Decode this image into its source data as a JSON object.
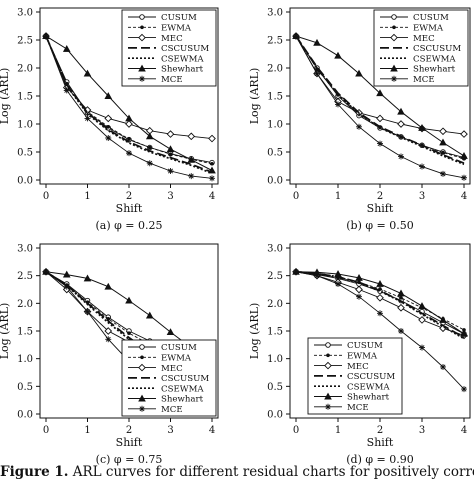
{
  "figure": {
    "caption_label": "Figure 1.",
    "caption_text": "ARL curves for different residual charts for positively correlated processes"
  },
  "legend_labels": [
    "CUSUM",
    "EWMA",
    "MEC",
    "CSCUSUM",
    "CSEWMA",
    "Shewhart",
    "MCE"
  ],
  "chart_data": [
    {
      "type": "line",
      "subcaption": "(a) φ = 0.25",
      "xlabel": "Shift",
      "ylabel": "Log (ARL)",
      "xlim": [
        0,
        4
      ],
      "ylim": [
        0,
        3.0
      ],
      "x_ticks": [
        0,
        1,
        2,
        3,
        4
      ],
      "y_ticks": [
        0.0,
        0.5,
        1.0,
        1.5,
        2.0,
        2.5,
        3.0
      ],
      "legend_position": "top-right",
      "x": [
        0,
        0.5,
        1,
        1.5,
        2,
        2.5,
        3,
        3.5,
        4
      ],
      "series": [
        {
          "name": "CUSUM",
          "values": [
            2.57,
            1.75,
            1.2,
            0.93,
            0.72,
            0.58,
            0.47,
            0.38,
            0.31
          ]
        },
        {
          "name": "EWMA",
          "values": [
            2.57,
            1.72,
            1.22,
            0.95,
            0.73,
            0.58,
            0.46,
            0.37,
            0.29
          ]
        },
        {
          "name": "MEC",
          "values": [
            2.57,
            1.65,
            1.25,
            1.1,
            1.0,
            0.88,
            0.82,
            0.78,
            0.74
          ]
        },
        {
          "name": "CSCUSUM",
          "values": [
            2.57,
            1.7,
            1.2,
            0.9,
            0.68,
            0.52,
            0.4,
            0.28,
            0.14
          ]
        },
        {
          "name": "CSEWMA",
          "values": [
            2.57,
            1.68,
            1.18,
            0.88,
            0.66,
            0.5,
            0.38,
            0.26,
            0.12
          ]
        },
        {
          "name": "Shewhart",
          "values": [
            2.57,
            2.34,
            1.9,
            1.5,
            1.1,
            0.78,
            0.55,
            0.36,
            0.17
          ]
        },
        {
          "name": "MCE",
          "values": [
            2.57,
            1.6,
            1.1,
            0.75,
            0.48,
            0.3,
            0.16,
            0.07,
            0.03
          ]
        }
      ]
    },
    {
      "type": "line",
      "subcaption": "(b) φ = 0.50",
      "xlabel": "Shift",
      "ylabel": "Log (ARL)",
      "xlim": [
        0,
        4
      ],
      "ylim": [
        0,
        3.0
      ],
      "x_ticks": [
        0,
        1,
        2,
        3,
        4
      ],
      "y_ticks": [
        0.0,
        0.5,
        1.0,
        1.5,
        2.0,
        2.5,
        3.0
      ],
      "legend_position": "top-right",
      "x": [
        0,
        0.5,
        1,
        1.5,
        2,
        2.5,
        3,
        3.5,
        4
      ],
      "series": [
        {
          "name": "CUSUM",
          "values": [
            2.57,
            2.0,
            1.5,
            1.15,
            0.93,
            0.77,
            0.62,
            0.5,
            0.4
          ]
        },
        {
          "name": "EWMA",
          "values": [
            2.57,
            1.98,
            1.52,
            1.18,
            0.94,
            0.77,
            0.62,
            0.49,
            0.38
          ]
        },
        {
          "name": "MEC",
          "values": [
            2.57,
            1.9,
            1.4,
            1.2,
            1.1,
            1.0,
            0.92,
            0.87,
            0.82
          ]
        },
        {
          "name": "CSCUSUM",
          "values": [
            2.57,
            2.02,
            1.55,
            1.2,
            0.95,
            0.78,
            0.62,
            0.45,
            0.3
          ]
        },
        {
          "name": "CSEWMA",
          "values": [
            2.57,
            2.0,
            1.53,
            1.18,
            0.93,
            0.76,
            0.6,
            0.43,
            0.28
          ]
        },
        {
          "name": "Shewhart",
          "values": [
            2.57,
            2.45,
            2.22,
            1.9,
            1.55,
            1.22,
            0.93,
            0.67,
            0.43
          ]
        },
        {
          "name": "MCE",
          "values": [
            2.57,
            1.9,
            1.35,
            0.95,
            0.65,
            0.42,
            0.24,
            0.11,
            0.04
          ]
        }
      ]
    },
    {
      "type": "line",
      "subcaption": "(c) φ = 0.75",
      "xlabel": "Shift",
      "ylabel": "Log (ARL)",
      "xlim": [
        0,
        4
      ],
      "ylim": [
        0,
        3.0
      ],
      "x_ticks": [
        0,
        1,
        2,
        3,
        4
      ],
      "y_ticks": [
        0.0,
        0.5,
        1.0,
        1.5,
        2.0,
        2.5,
        3.0
      ],
      "legend_position": "bottom-right",
      "x": [
        0,
        0.5,
        1,
        1.5,
        2,
        2.5,
        3,
        3.5,
        4
      ],
      "series": [
        {
          "name": "CUSUM",
          "values": [
            2.57,
            2.35,
            2.05,
            1.75,
            1.5,
            1.32,
            1.18,
            1.1,
            1.02
          ]
        },
        {
          "name": "EWMA",
          "values": [
            2.57,
            2.33,
            2.02,
            1.72,
            1.46,
            1.26,
            1.1,
            0.98,
            0.88
          ]
        },
        {
          "name": "MEC",
          "values": [
            2.57,
            2.25,
            1.85,
            1.5,
            1.3,
            1.2,
            1.15,
            1.1,
            1.05
          ]
        },
        {
          "name": "CSCUSUM",
          "values": [
            2.57,
            2.33,
            2.0,
            1.68,
            1.38,
            1.12,
            0.92,
            0.75,
            0.6
          ]
        },
        {
          "name": "CSEWMA",
          "values": [
            2.57,
            2.32,
            1.98,
            1.65,
            1.35,
            1.1,
            0.9,
            0.72,
            0.57
          ]
        },
        {
          "name": "Shewhart",
          "values": [
            2.57,
            2.52,
            2.45,
            2.3,
            2.05,
            1.78,
            1.48,
            1.2,
            0.91
          ]
        },
        {
          "name": "MCE",
          "values": [
            2.57,
            2.3,
            1.85,
            1.35,
            0.95,
            0.62,
            0.4,
            0.22,
            0.1
          ]
        }
      ]
    },
    {
      "type": "line",
      "subcaption": "(d) φ = 0.90",
      "xlabel": "Shift",
      "ylabel": "Log (ARL)",
      "xlim": [
        0,
        4
      ],
      "ylim": [
        0,
        3.0
      ],
      "x_ticks": [
        0,
        1,
        2,
        3,
        4
      ],
      "y_ticks": [
        0.0,
        0.5,
        1.0,
        1.5,
        2.0,
        2.5,
        3.0
      ],
      "legend_position": "bottom-left",
      "x": [
        0,
        0.5,
        1,
        1.5,
        2,
        2.5,
        3,
        3.5,
        4
      ],
      "series": [
        {
          "name": "CUSUM",
          "values": [
            2.57,
            2.52,
            2.45,
            2.35,
            2.22,
            2.05,
            1.85,
            1.65,
            1.45
          ]
        },
        {
          "name": "EWMA",
          "values": [
            2.57,
            2.53,
            2.46,
            2.38,
            2.26,
            2.1,
            1.92,
            1.72,
            1.52
          ]
        },
        {
          "name": "MEC",
          "values": [
            2.57,
            2.5,
            2.38,
            2.25,
            2.1,
            1.92,
            1.7,
            1.55,
            1.42
          ]
        },
        {
          "name": "CSCUSUM",
          "values": [
            2.57,
            2.54,
            2.48,
            2.38,
            2.23,
            2.04,
            1.82,
            1.6,
            1.38
          ]
        },
        {
          "name": "CSEWMA",
          "values": [
            2.57,
            2.54,
            2.48,
            2.37,
            2.22,
            2.03,
            1.8,
            1.58,
            1.36
          ]
        },
        {
          "name": "Shewhart",
          "values": [
            2.57,
            2.56,
            2.53,
            2.46,
            2.35,
            2.18,
            1.95,
            1.7,
            1.45
          ]
        },
        {
          "name": "MCE",
          "values": [
            2.57,
            2.5,
            2.35,
            2.12,
            1.82,
            1.5,
            1.2,
            0.85,
            0.45
          ]
        }
      ]
    }
  ]
}
